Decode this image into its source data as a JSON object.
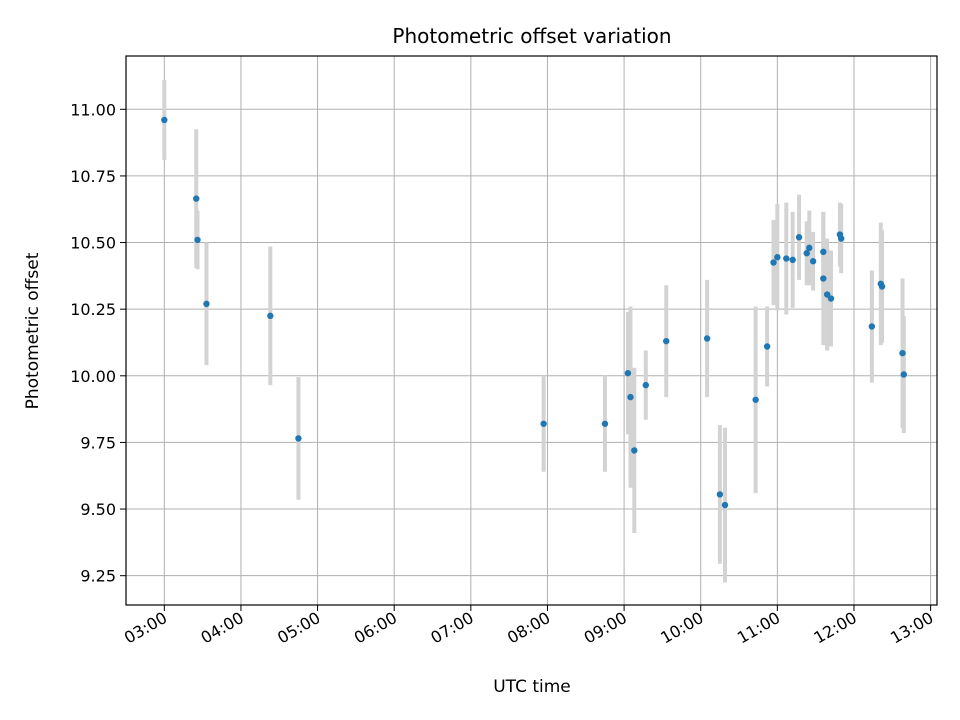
{
  "chart_data": {
    "type": "scatter",
    "title": "Photometric offset variation",
    "xlabel": "UTC time",
    "ylabel": "Photometric offset",
    "grid": true,
    "legend": "none",
    "xlim": [
      "02:30",
      "13:05"
    ],
    "ylim": [
      9.14,
      11.2
    ],
    "x_ticks": [
      "03:00",
      "04:00",
      "05:00",
      "06:00",
      "07:00",
      "08:00",
      "09:00",
      "10:00",
      "11:00",
      "12:00",
      "13:00"
    ],
    "y_ticks": [
      "9.25",
      "9.50",
      "9.75",
      "10.00",
      "10.25",
      "10.50",
      "10.75",
      "11.00"
    ],
    "colors": {
      "point": "#1f77b4",
      "errorbar": "#d3d3d3",
      "grid": "#b0b0b0"
    },
    "series": [
      {
        "points": [
          {
            "x": "03:00",
            "y": 10.96,
            "err": 0.15
          },
          {
            "x": "03:25",
            "y": 10.665,
            "err": 0.26
          },
          {
            "x": "03:26",
            "y": 10.51,
            "err": 0.11
          },
          {
            "x": "03:33",
            "y": 10.27,
            "err": 0.23
          },
          {
            "x": "04:23",
            "y": 10.225,
            "err": 0.26
          },
          {
            "x": "04:45",
            "y": 9.765,
            "err": 0.23
          },
          {
            "x": "07:57",
            "y": 9.82,
            "err": 0.18
          },
          {
            "x": "08:45",
            "y": 9.82,
            "err": 0.18
          },
          {
            "x": "09:03",
            "y": 10.01,
            "err": 0.23
          },
          {
            "x": "09:05",
            "y": 9.92,
            "err": 0.34
          },
          {
            "x": "09:08",
            "y": 9.72,
            "err": 0.31
          },
          {
            "x": "09:17",
            "y": 9.965,
            "err": 0.13
          },
          {
            "x": "09:33",
            "y": 10.13,
            "err": 0.21
          },
          {
            "x": "10:05",
            "y": 10.14,
            "err": 0.22
          },
          {
            "x": "10:15",
            "y": 9.555,
            "err": 0.26
          },
          {
            "x": "10:19",
            "y": 9.515,
            "err": 0.29
          },
          {
            "x": "10:43",
            "y": 9.91,
            "err": 0.35
          },
          {
            "x": "10:52",
            "y": 10.11,
            "err": 0.15
          },
          {
            "x": "10:57",
            "y": 10.425,
            "err": 0.16
          },
          {
            "x": "11:00",
            "y": 10.445,
            "err": 0.2
          },
          {
            "x": "11:07",
            "y": 10.44,
            "err": 0.21
          },
          {
            "x": "11:12",
            "y": 10.435,
            "err": 0.18
          },
          {
            "x": "11:17",
            "y": 10.52,
            "err": 0.16
          },
          {
            "x": "11:23",
            "y": 10.46,
            "err": 0.12
          },
          {
            "x": "11:25",
            "y": 10.48,
            "err": 0.14
          },
          {
            "x": "11:28",
            "y": 10.43,
            "err": 0.11
          },
          {
            "x": "11:36",
            "y": 10.465,
            "err": 0.15
          },
          {
            "x": "11:36",
            "y": 10.365,
            "err": 0.25
          },
          {
            "x": "11:39",
            "y": 10.305,
            "err": 0.21
          },
          {
            "x": "11:42",
            "y": 10.29,
            "err": 0.18
          },
          {
            "x": "11:49",
            "y": 10.53,
            "err": 0.12
          },
          {
            "x": "11:50",
            "y": 10.515,
            "err": 0.13
          },
          {
            "x": "12:14",
            "y": 10.185,
            "err": 0.21
          },
          {
            "x": "12:21",
            "y": 10.345,
            "err": 0.23
          },
          {
            "x": "12:22",
            "y": 10.335,
            "err": 0.21
          },
          {
            "x": "12:38",
            "y": 10.085,
            "err": 0.28
          },
          {
            "x": "12:39",
            "y": 10.005,
            "err": 0.22
          }
        ]
      }
    ]
  }
}
